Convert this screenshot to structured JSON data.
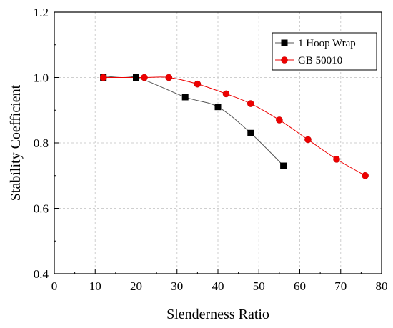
{
  "chart_data": {
    "type": "line",
    "xlabel": "Slenderness Ratio",
    "ylabel": "Stability Coefficient",
    "xlim": [
      0,
      80
    ],
    "ylim": [
      0.4,
      1.2
    ],
    "x_ticks": [
      0,
      10,
      20,
      30,
      40,
      50,
      60,
      70,
      80
    ],
    "y_ticks": [
      0.4,
      0.6,
      0.8,
      1.0,
      1.2
    ],
    "x_tick_labels": [
      "0",
      "10",
      "20",
      "30",
      "40",
      "50",
      "60",
      "70",
      "80"
    ],
    "y_tick_labels": [
      "0.4",
      "0.6",
      "0.8",
      "1.0",
      "1.2"
    ],
    "grid": true,
    "legend_position": "top-right",
    "series": [
      {
        "name": "1 Hoop Wrap",
        "marker": "square",
        "color": "#000000",
        "line_color": "#555555",
        "x": [
          12,
          20,
          32,
          40,
          48,
          56
        ],
        "y": [
          1.0,
          1.0,
          0.94,
          0.91,
          0.83,
          0.73
        ]
      },
      {
        "name": "GB 50010",
        "marker": "circle",
        "color": "#ee0000",
        "line_color": "#ee0000",
        "x": [
          12,
          22,
          28,
          35,
          42,
          48,
          55,
          62,
          69,
          76
        ],
        "y": [
          1.0,
          1.0,
          1.0,
          0.98,
          0.95,
          0.92,
          0.87,
          0.81,
          0.75,
          0.7
        ]
      }
    ]
  }
}
